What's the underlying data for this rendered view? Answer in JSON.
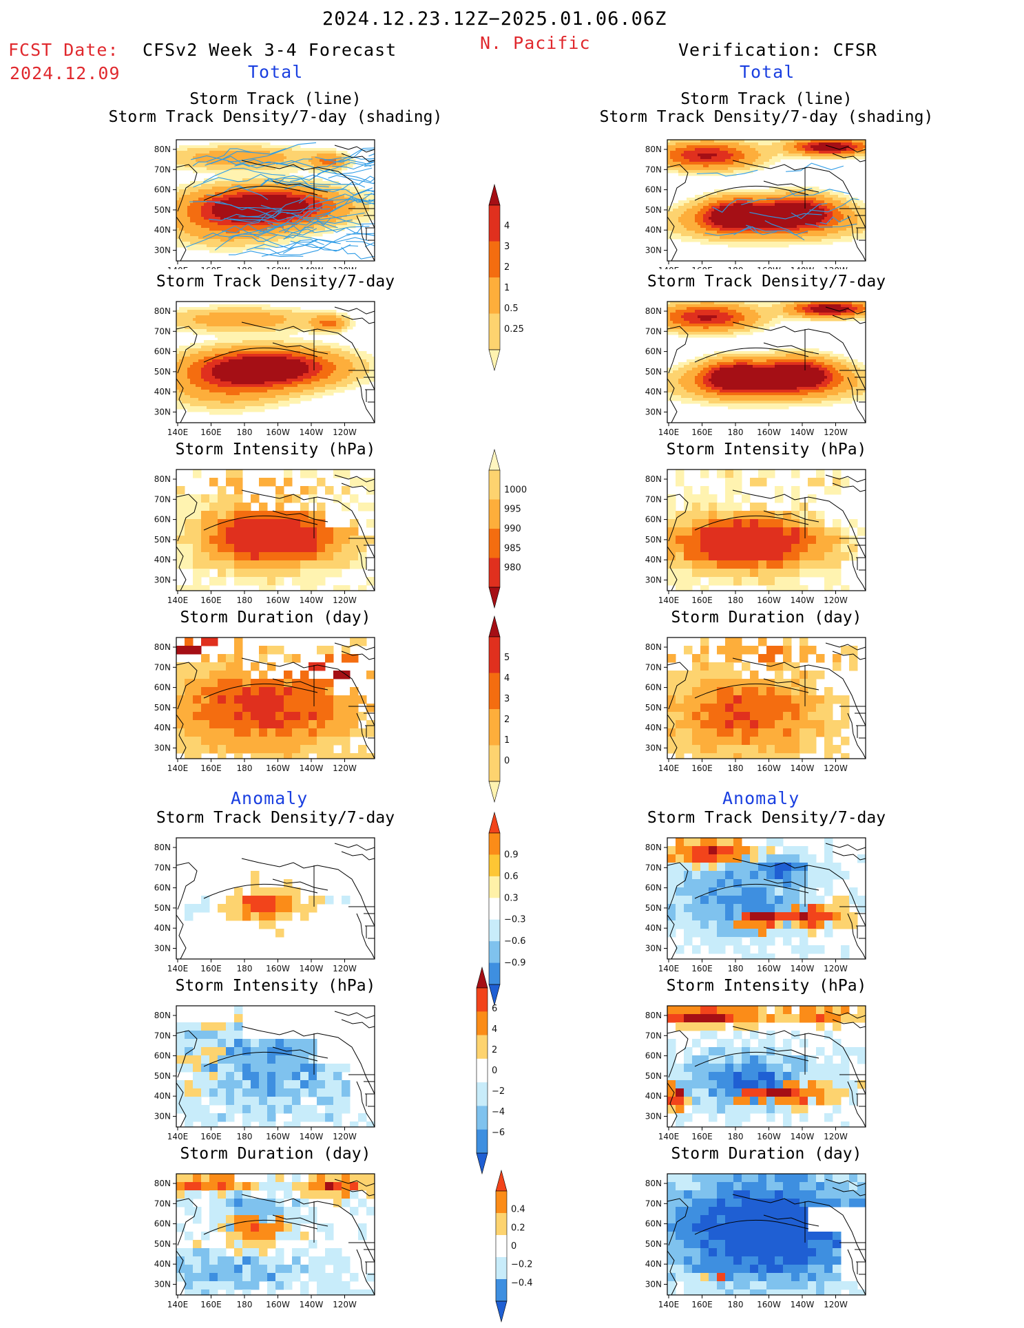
{
  "header": {
    "date_range": "2024.12.23.12Z−2025.01.06.06Z",
    "region": "N. Pacific",
    "fcst_date_label": "FCST Date:",
    "fcst_date_value": "2024.12.09",
    "left_title": "CFSv2 Week 3-4 Forecast",
    "right_title": "Verification: CFSR",
    "total_label": "Total",
    "anomaly_label": "Anomaly"
  },
  "axes": {
    "lon_ticks": [
      "140E",
      "160E",
      "180",
      "160W",
      "140W",
      "120W"
    ],
    "lat_ticks": [
      "80N",
      "70N",
      "60N",
      "50N",
      "40N",
      "30N"
    ]
  },
  "panels": [
    {
      "id": "fc-track",
      "title": "Storm Track (line)",
      "title2": "Storm Track Density/7-day (shading)",
      "style": "density-track",
      "kind": "total"
    },
    {
      "id": "fc-density",
      "title": "Storm Track Density/7-day",
      "style": "density",
      "kind": "total"
    },
    {
      "id": "fc-intensity",
      "title": "Storm Intensity (hPa)",
      "style": "intensity",
      "kind": "total"
    },
    {
      "id": "fc-duration",
      "title": "Storm Duration (day)",
      "style": "duration",
      "kind": "total"
    },
    {
      "id": "fc-density-anom",
      "title": "Storm Track Density/7-day",
      "style": "anom-density",
      "kind": "anomaly"
    },
    {
      "id": "fc-intensity-anom",
      "title": "Storm Intensity (hPa)",
      "style": "anom-intensity",
      "kind": "anomaly"
    },
    {
      "id": "fc-duration-anom",
      "title": "Storm Duration (day)",
      "style": "anom-duration",
      "kind": "anomaly"
    }
  ],
  "colorbars": [
    {
      "id": "cb-density",
      "labels": [
        "4",
        "3",
        "2",
        "1",
        "0.5",
        "0.25"
      ],
      "colors": [
        "#a50f15",
        "#e0301e",
        "#f46d10",
        "#fdae3b",
        "#fdd36f",
        "#fff3b0"
      ]
    },
    {
      "id": "cb-intensity",
      "labels": [
        "1000",
        "995",
        "990",
        "985",
        "980"
      ],
      "colors": [
        "#fff6c0",
        "#fdd36f",
        "#fdae3b",
        "#f46d10",
        "#e0301e",
        "#a50f15"
      ]
    },
    {
      "id": "cb-duration",
      "labels": [
        "5",
        "4",
        "3",
        "2",
        "1",
        "0"
      ],
      "colors": [
        "#a50f15",
        "#e0301e",
        "#f46d10",
        "#fdae3b",
        "#fdd36f",
        "#fff3b0"
      ]
    },
    {
      "id": "cb-density-anom",
      "labels": [
        "0.9",
        "0.6",
        "0.3",
        "−0.3",
        "−0.6",
        "−0.9"
      ],
      "colors": [
        "#f2441b",
        "#fb8c18",
        "#fdc634",
        "#fff1a8",
        "#ffffff",
        "#c8ecfa",
        "#7fc2ee",
        "#3e8fe0",
        "#1f5fd3"
      ]
    },
    {
      "id": "cb-intensity-anom",
      "labels": [
        "6",
        "4",
        "2",
        "0",
        "−2",
        "−4",
        "−6"
      ],
      "colors": [
        "#a50f15",
        "#f2441b",
        "#fb8c18",
        "#fdd36f",
        "#ffffff",
        "#c8ecfa",
        "#7fc2ee",
        "#3e8fe0",
        "#1f5fd3"
      ]
    },
    {
      "id": "cb-duration-anom",
      "labels": [
        "0.4",
        "0.2",
        "0",
        "−0.2",
        "−0.4"
      ],
      "colors": [
        "#f2441b",
        "#fb8c18",
        "#fdd36f",
        "#ffffff",
        "#c8ecfa",
        "#3e8fe0",
        "#1f5fd3"
      ]
    }
  ],
  "colors": {
    "density": [
      "#fff3b0",
      "#fdd36f",
      "#fdae3b",
      "#f46d10",
      "#e0301e",
      "#a50f15"
    ],
    "anom_warm": [
      "#fdd36f",
      "#fb8c18",
      "#f2441b",
      "#a50f15"
    ],
    "anom_cool": [
      "#c8ecfa",
      "#7fc2ee",
      "#3e8fe0",
      "#1f5fd3"
    ],
    "track_line": "#2d9be6",
    "red_text": "#e0282d",
    "blue_text": "#1a3fe0"
  }
}
